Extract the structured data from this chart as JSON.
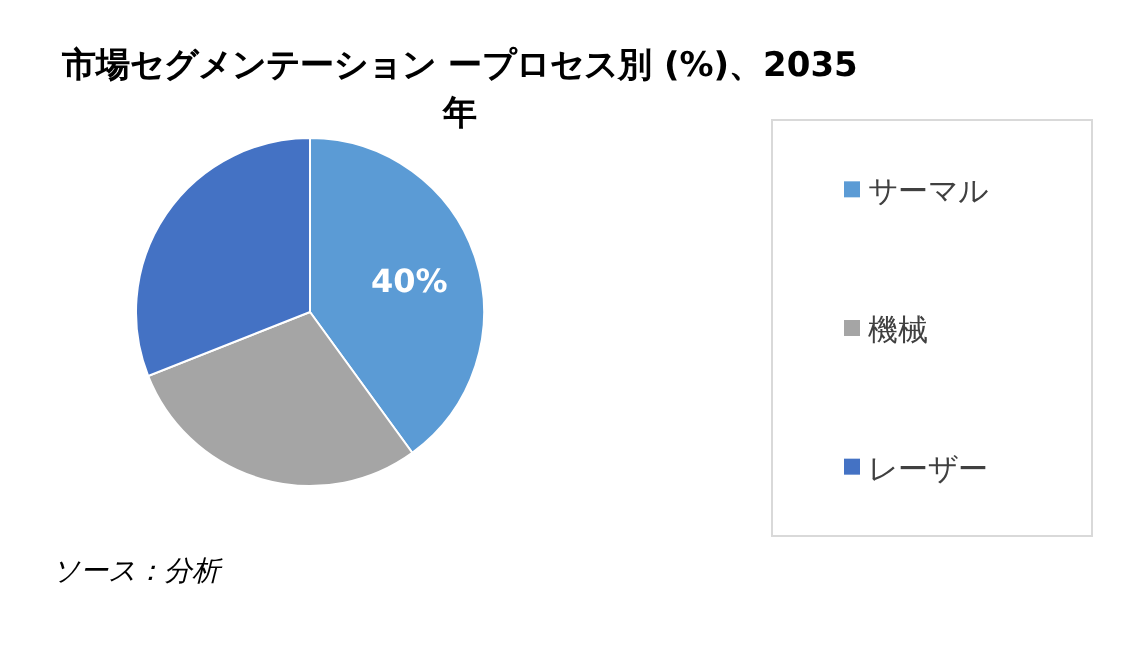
{
  "chart_data": {
    "type": "pie",
    "title": "市場セグメンテーション ープロセス別 (%)、2035年",
    "categories": [
      "サーマル",
      "機械",
      "レーザー"
    ],
    "values": [
      40,
      29,
      31
    ],
    "colors": [
      "#5b9bd5",
      "#a5a5a5",
      "#4472c4"
    ],
    "value_labels": [
      "40%",
      null,
      null
    ],
    "legend": "right",
    "annotations": [
      "ソース：分析"
    ]
  }
}
